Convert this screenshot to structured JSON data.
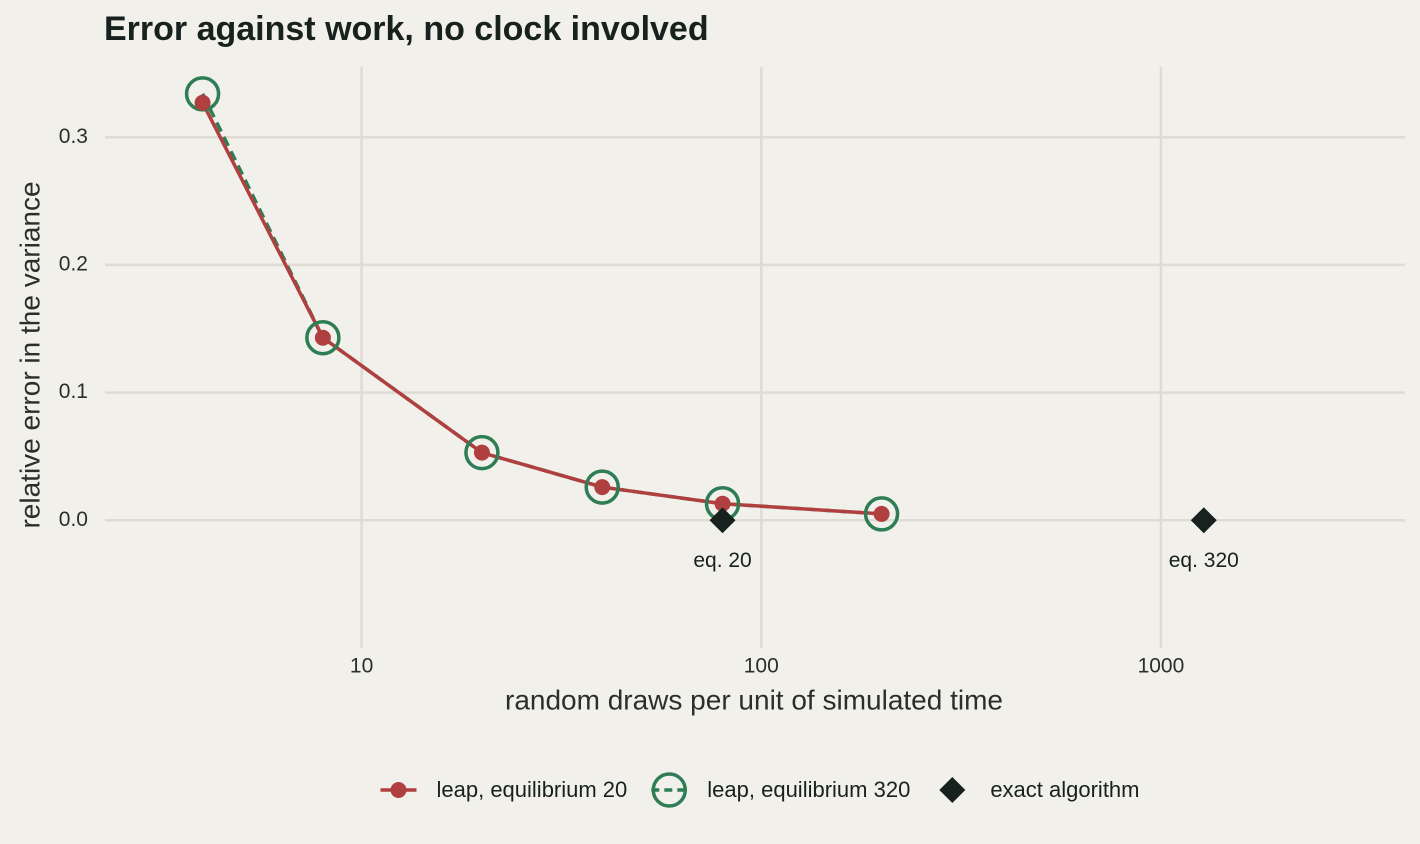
{
  "chart_data": {
    "type": "line",
    "title": "Error against work, no clock involved",
    "x_label": "random draws per unit of simulated time",
    "y_label": "relative error in the variance",
    "xscale": "log",
    "xlim": [
      2.28,
      4080
    ],
    "xticks": [
      10,
      100,
      1000
    ],
    "ylim": [
      -0.1,
      0.355
    ],
    "yticks": [
      {
        "value": 0,
        "label": "0.0"
      },
      0.1,
      0.2,
      0.3
    ],
    "grid": true,
    "legend": "bottom",
    "series": [
      {
        "name": "leap, equilibrium 20",
        "color": "#b0403f",
        "marker": "dot",
        "line": "solid",
        "x": [
          4,
          8,
          20,
          40,
          80,
          200
        ],
        "values": [
          0.327,
          0.143,
          0.053,
          0.026,
          0.013,
          0.005
        ]
      },
      {
        "name": "leap, equilibrium 320",
        "color": "#2e7d55",
        "marker": "ring",
        "line": "dashed",
        "x": [
          4,
          8,
          20,
          40,
          80,
          200
        ],
        "values": [
          0.334,
          0.143,
          0.053,
          0.026,
          0.013,
          0.005
        ]
      },
      {
        "name": "exact algorithm",
        "color": "#17211d",
        "marker": "diamond",
        "line": null,
        "x": [
          80,
          1280
        ],
        "values": [
          0,
          0
        ]
      }
    ],
    "annotations": [
      {
        "text": "eq. 20",
        "x": 80,
        "y": 0
      },
      {
        "text": "eq. 320",
        "x": 1280,
        "y": 0
      }
    ]
  }
}
